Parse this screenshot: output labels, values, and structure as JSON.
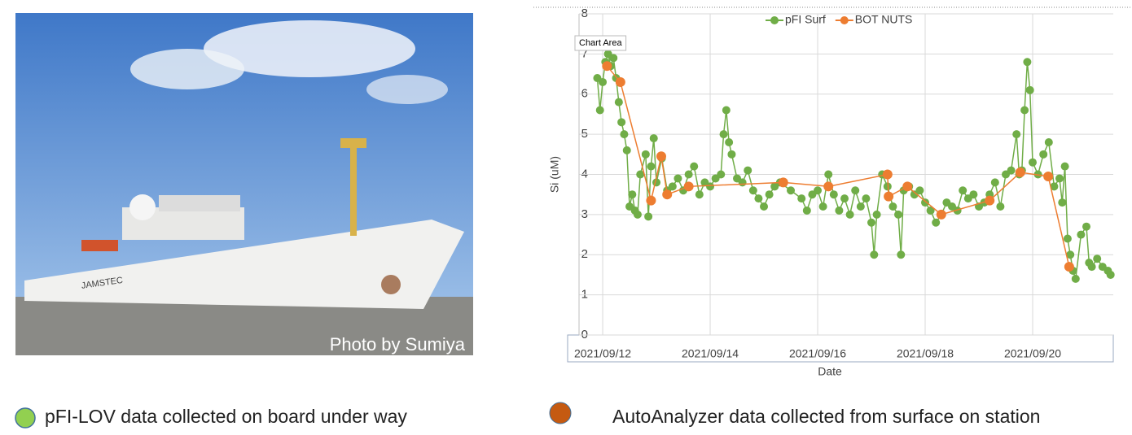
{
  "photo": {
    "caption": "Photo by Sumiya",
    "hull_label": "JAMSTEC"
  },
  "chart_data": {
    "type": "line",
    "y_label": "Si (uM)",
    "x_label": "Date",
    "annotation": "Chart Area",
    "xlim": [
      11.56,
      21.5
    ],
    "xticks": [
      {
        "value": 12,
        "label": "2021/09/12"
      },
      {
        "value": 14,
        "label": "2021/09/14"
      },
      {
        "value": 16,
        "label": "2021/09/16"
      },
      {
        "value": 18,
        "label": "2021/09/18"
      },
      {
        "value": 20,
        "label": "2021/09/20"
      }
    ],
    "ylim": [
      0,
      8
    ],
    "yticks": [
      0,
      1,
      2,
      3,
      4,
      5,
      6,
      7,
      8
    ],
    "grid": true,
    "legend": "top",
    "series": [
      {
        "name": "pFI Surf",
        "color": "#70ad47",
        "x": [
          11.9,
          11.95,
          12.0,
          12.05,
          12.1,
          12.15,
          12.2,
          12.25,
          12.3,
          12.35,
          12.4,
          12.45,
          12.5,
          12.55,
          12.6,
          12.65,
          12.7,
          12.8,
          12.85,
          12.9,
          12.95,
          13.0,
          13.1,
          13.2,
          13.3,
          13.4,
          13.5,
          13.6,
          13.7,
          13.8,
          13.9,
          14.0,
          14.1,
          14.2,
          14.25,
          14.3,
          14.35,
          14.4,
          14.5,
          14.6,
          14.7,
          14.8,
          14.9,
          15.0,
          15.1,
          15.2,
          15.3,
          15.5,
          15.7,
          15.8,
          15.9,
          16.0,
          16.1,
          16.2,
          16.3,
          16.4,
          16.5,
          16.6,
          16.7,
          16.8,
          16.9,
          17.0,
          17.05,
          17.1,
          17.2,
          17.3,
          17.4,
          17.5,
          17.55,
          17.6,
          17.7,
          17.8,
          17.9,
          18.0,
          18.1,
          18.2,
          18.3,
          18.4,
          18.5,
          18.6,
          18.7,
          18.8,
          18.9,
          19.0,
          19.1,
          19.2,
          19.3,
          19.4,
          19.5,
          19.6,
          19.7,
          19.75,
          19.8,
          19.85,
          19.9,
          19.95,
          20.0,
          20.1,
          20.2,
          20.3,
          20.4,
          20.5,
          20.55,
          20.6,
          20.65,
          20.7,
          20.75,
          20.8,
          20.9,
          21.0,
          21.05,
          21.1,
          21.2,
          21.3,
          21.4,
          21.45
        ],
        "values": [
          6.4,
          5.6,
          6.3,
          6.8,
          7.0,
          6.7,
          6.9,
          6.4,
          5.8,
          5.3,
          5.0,
          4.6,
          3.2,
          3.5,
          3.1,
          3.0,
          4.0,
          4.5,
          2.95,
          4.2,
          4.9,
          3.8,
          4.4,
          3.6,
          3.7,
          3.9,
          3.6,
          4.0,
          4.2,
          3.5,
          3.8,
          3.7,
          3.9,
          4.0,
          5.0,
          5.6,
          4.8,
          4.5,
          3.9,
          3.8,
          4.1,
          3.6,
          3.4,
          3.2,
          3.5,
          3.7,
          3.8,
          3.6,
          3.4,
          3.1,
          3.5,
          3.6,
          3.2,
          4.0,
          3.5,
          3.1,
          3.4,
          3.0,
          3.6,
          3.2,
          3.4,
          2.8,
          2.0,
          3.0,
          4.0,
          3.7,
          3.2,
          3.0,
          2.0,
          3.6,
          3.7,
          3.5,
          3.6,
          3.3,
          3.1,
          2.8,
          3.0,
          3.3,
          3.2,
          3.1,
          3.6,
          3.4,
          3.5,
          3.2,
          3.3,
          3.5,
          3.8,
          3.2,
          4.0,
          4.1,
          5.0,
          4.0,
          4.1,
          5.6,
          6.8,
          6.1,
          4.3,
          4.0,
          4.5,
          4.8,
          3.7,
          3.9,
          3.3,
          4.2,
          2.4,
          2.0,
          1.6,
          1.4,
          2.5,
          2.7,
          1.8,
          1.7,
          1.9,
          1.7,
          1.6,
          1.5
        ]
      },
      {
        "name": "BOT NUTS",
        "color": "#ed7d31",
        "x": [
          12.08,
          12.33,
          12.9,
          13.09,
          13.2,
          13.6,
          15.36,
          16.2,
          17.3,
          17.32,
          17.67,
          18.3,
          19.2,
          19.77,
          20.29,
          20.68
        ],
        "values": [
          6.7,
          6.3,
          3.35,
          4.45,
          3.5,
          3.7,
          3.8,
          3.7,
          4.0,
          3.45,
          3.7,
          3.0,
          3.35,
          4.05,
          3.95,
          1.7
        ]
      }
    ]
  },
  "footnotes": [
    "pFI-LOV data collected on board under way",
    "AutoAnalyzer data collected from surface on station"
  ]
}
